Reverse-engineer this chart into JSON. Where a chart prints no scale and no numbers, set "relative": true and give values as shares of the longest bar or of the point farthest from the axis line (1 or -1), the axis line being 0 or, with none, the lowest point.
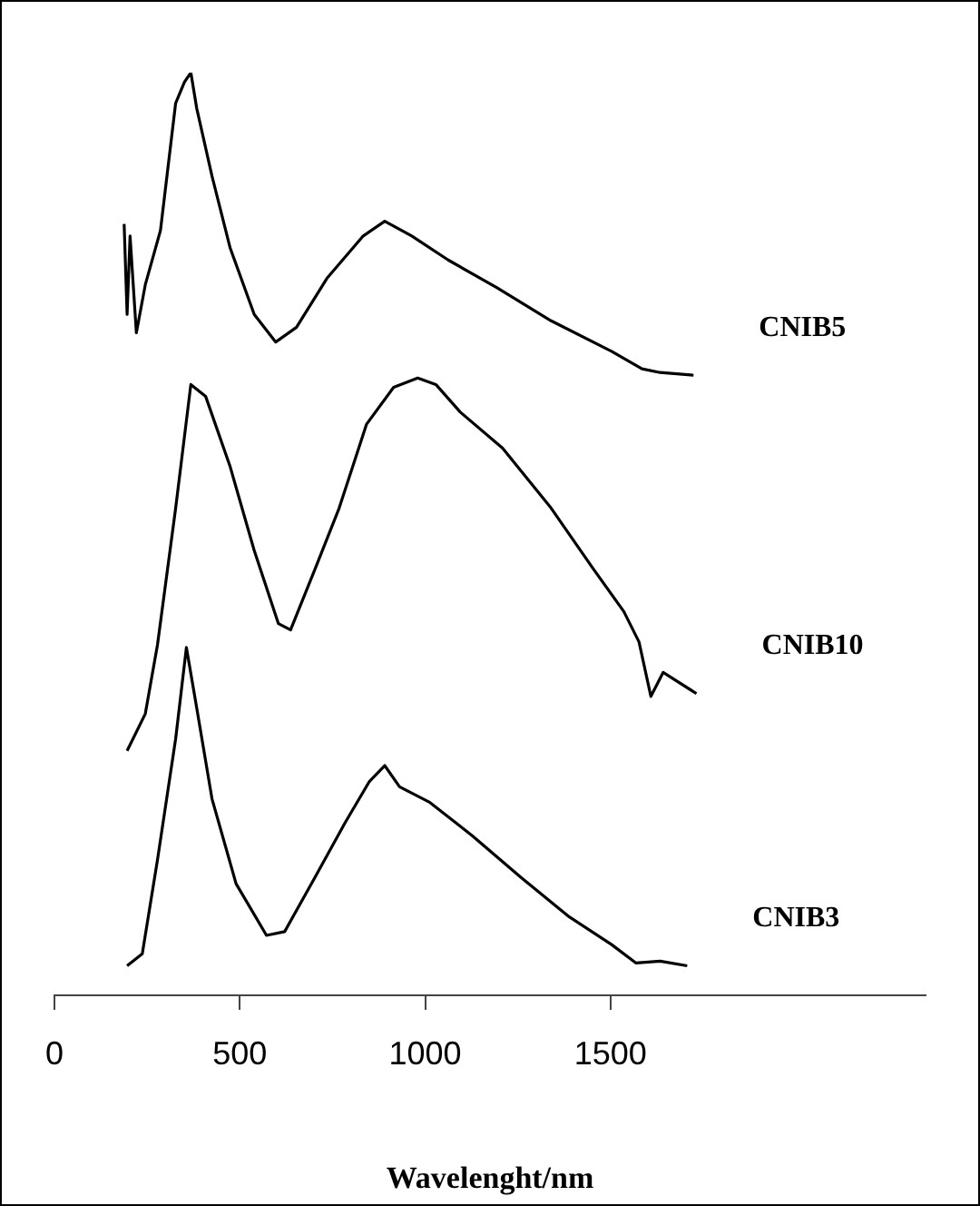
{
  "chart_data": {
    "type": "line",
    "xlabel": "Wavelenght/nm",
    "relative": true,
    "xlim": [
      0,
      2350
    ],
    "xticks": [
      0,
      500,
      1000,
      1500
    ],
    "grid": false,
    "legend": false,
    "marker": "none",
    "line_style": "solid",
    "series": [
      {
        "name": "CNIB5",
        "color": "#000000",
        "x": [
          188,
          196,
          204,
          221,
          245,
          286,
          327,
          351,
          368,
          384,
          425,
          474,
          539,
          597,
          653,
          735,
          833,
          891,
          964,
          1062,
          1193,
          1340,
          1503,
          1585,
          1634,
          1724
        ],
        "values": [
          0.836,
          0.738,
          0.823,
          0.718,
          0.77,
          0.829,
          0.967,
          0.99,
          1,
          0.961,
          0.888,
          0.81,
          0.738,
          0.708,
          0.724,
          0.777,
          0.823,
          0.839,
          0.823,
          0.797,
          0.767,
          0.731,
          0.698,
          0.679,
          0.675,
          0.672
        ]
      },
      {
        "name": "CNIB10",
        "color": "#000000",
        "x": [
          196,
          245,
          278,
          327,
          368,
          408,
          474,
          539,
          604,
          637,
          703,
          768,
          842,
          915,
          980,
          1029,
          1095,
          1209,
          1340,
          1454,
          1536,
          1577,
          1609,
          1642,
          1732
        ],
        "values": [
          0.265,
          0.305,
          0.38,
          0.528,
          0.662,
          0.649,
          0.573,
          0.482,
          0.403,
          0.396,
          0.462,
          0.528,
          0.619,
          0.659,
          0.669,
          0.662,
          0.632,
          0.593,
          0.528,
          0.462,
          0.416,
          0.383,
          0.324,
          0.35,
          0.327
        ]
      },
      {
        "name": "CNIB3",
        "color": "#000000",
        "x": [
          196,
          237,
          278,
          327,
          356,
          384,
          425,
          490,
          572,
          621,
          703,
          784,
          850,
          891,
          931,
          1013,
          1127,
          1258,
          1389,
          1503,
          1569,
          1634,
          1707
        ],
        "values": [
          0.032,
          0.045,
          0.147,
          0.278,
          0.377,
          0.311,
          0.213,
          0.121,
          0.065,
          0.069,
          0.128,
          0.187,
          0.232,
          0.249,
          0.226,
          0.209,
          0.173,
          0.128,
          0.085,
          0.055,
          0.035,
          0.037,
          0.032
        ]
      }
    ]
  }
}
